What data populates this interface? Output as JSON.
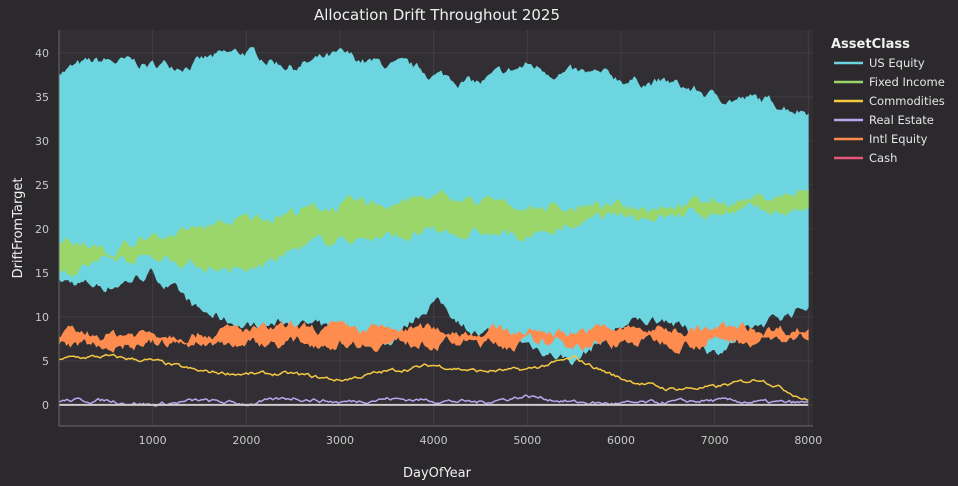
{
  "chart_data": {
    "type": "area",
    "title": "Allocation Drift Throughout 2025",
    "xlabel": "DayOfYear",
    "ylabel": "DriftFromTarget",
    "xlim": [
      0,
      8050
    ],
    "ylim": [
      -2.4,
      42.6
    ],
    "xticks": [
      1000,
      2000,
      3000,
      4000,
      5000,
      6000,
      7000,
      8000
    ],
    "yticks": [
      0,
      5,
      10,
      15,
      20,
      25,
      30,
      35,
      40
    ],
    "grid": true,
    "legend": {
      "title": "AssetClass",
      "placement": "right"
    },
    "x": [
      0,
      500,
      1000,
      1500,
      2000,
      2500,
      3000,
      3500,
      4000,
      4500,
      5000,
      5500,
      6000,
      6500,
      7000,
      7500,
      8000
    ],
    "series": [
      {
        "name": "US Equity",
        "color": "#6dd5e0",
        "style": "band",
        "upper": [
          38,
          39,
          38.5,
          39,
          40,
          38.5,
          39.5,
          38.5,
          37.5,
          36.5,
          38.5,
          37.5,
          37,
          36.5,
          35,
          34.5,
          33.5
        ],
        "lower": [
          14,
          13.5,
          15,
          10.5,
          9,
          9.5,
          8,
          7,
          12,
          8,
          7,
          5,
          9,
          10,
          6,
          9,
          11.5
        ]
      },
      {
        "name": "Fixed Income",
        "color": "#9bd66b",
        "style": "band",
        "upper": [
          19,
          17.5,
          19,
          20,
          21,
          22,
          22.5,
          23,
          23.5,
          23,
          22.5,
          22.5,
          22.5,
          23,
          23,
          23.5,
          24
        ],
        "lower": [
          15,
          16.5,
          17,
          16,
          15,
          17.5,
          19,
          19,
          19.5,
          19.5,
          19,
          20.5,
          21.5,
          21.5,
          22,
          22,
          22
        ]
      },
      {
        "name": "Commodities",
        "color": "#f5c842",
        "style": "line",
        "values": [
          5.3,
          5.5,
          5,
          3.8,
          3.5,
          3.5,
          2.8,
          3.8,
          4.5,
          3.8,
          4,
          5.3,
          3,
          1.8,
          2,
          3,
          0.5
        ]
      },
      {
        "name": "Real Estate",
        "color": "#b6a7ee",
        "style": "line",
        "values": [
          0.5,
          0.5,
          0,
          0.5,
          0.1,
          0.8,
          0.3,
          0.7,
          0.5,
          0.3,
          1,
          0.3,
          0.1,
          0.3,
          0.5,
          0.3,
          0.2
        ]
      },
      {
        "name": "Intl Equity",
        "color": "#ff8c4f",
        "style": "band",
        "upper": [
          8,
          8,
          8.2,
          8.3,
          8.4,
          8.5,
          8.5,
          8.5,
          8.5,
          8.4,
          8.3,
          8.4,
          8.5,
          8.5,
          8.5,
          8.6,
          8.6
        ],
        "lower": [
          6.8,
          6.9,
          7,
          7,
          7.1,
          7.1,
          7.2,
          7.1,
          7.1,
          7,
          7,
          7.1,
          7.2,
          7.3,
          7.3,
          7.4,
          7.4
        ]
      },
      {
        "name": "Cash",
        "color": "#e8577a",
        "style": "line",
        "values": [
          0,
          0,
          0,
          0,
          0,
          0,
          0,
          0,
          0,
          0,
          0,
          0,
          0,
          0,
          0,
          0,
          0
        ]
      }
    ]
  }
}
